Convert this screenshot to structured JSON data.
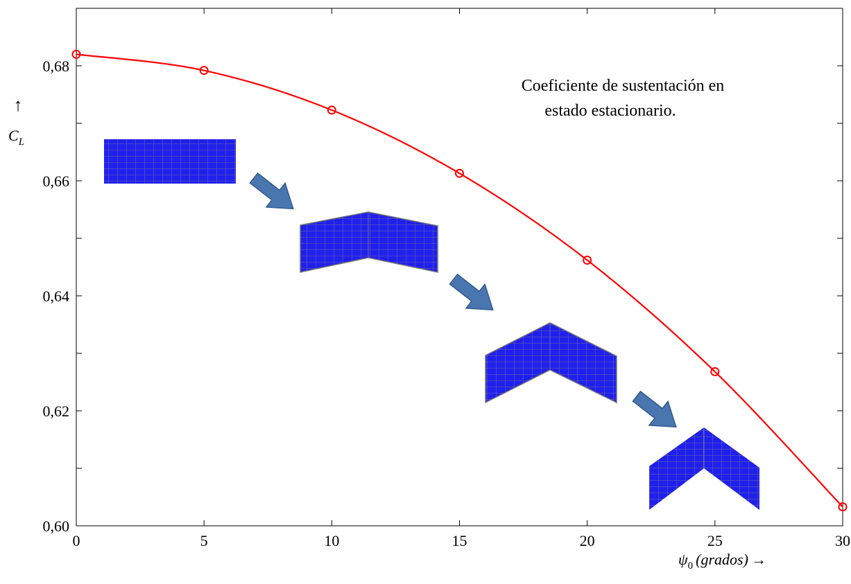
{
  "chart_data": {
    "type": "line",
    "x": [
      0,
      5,
      10,
      15,
      20,
      25,
      30
    ],
    "series": [
      {
        "values": [
          0.682,
          0.6792,
          0.6723,
          0.6613,
          0.6462,
          0.6268,
          0.6033
        ],
        "color": "#ff0000"
      }
    ],
    "xlim": [
      0,
      30
    ],
    "ylim": [
      0.6,
      0.69
    ],
    "xticks": [
      "0",
      "5",
      "10",
      "15",
      "20",
      "25",
      "30"
    ],
    "yticks": [
      "0,60",
      "0,62",
      "0,64",
      "0,66",
      "0,68"
    ],
    "xlabel": {
      "symbol": "ψ",
      "subscript": "0",
      "unit": "(grados)",
      "arrow": "→"
    },
    "ylabel": {
      "arrow": "↑",
      "symbol": "C",
      "subscript": "L"
    },
    "annotation": [
      "Coeficiente de sustentación en",
      "estado estacionario."
    ],
    "grid": false,
    "marker": "circle-open",
    "wing_fill_color": "#2020ee",
    "wing_grid_color": "#6a6a9a",
    "arrow_color": "#4a76b0"
  }
}
